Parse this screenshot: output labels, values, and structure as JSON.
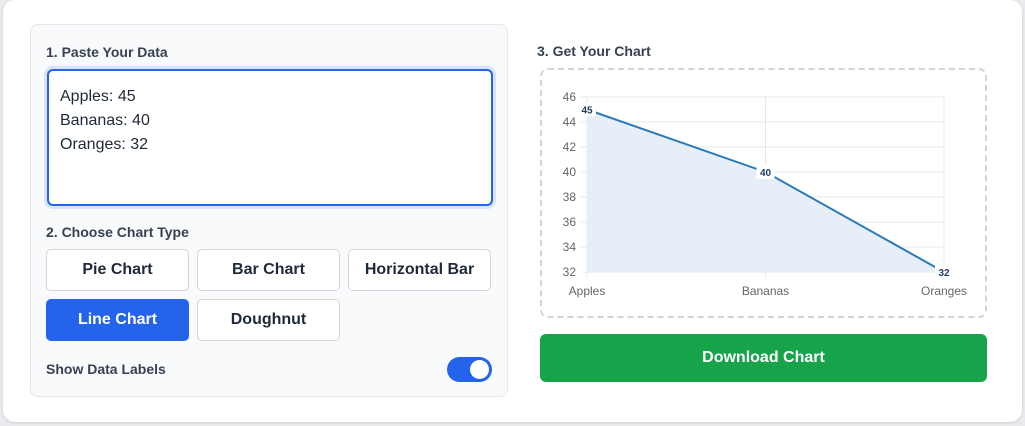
{
  "left": {
    "step1_label": "1. Paste Your Data",
    "data_text": "Apples: 45\nBananas: 40\nOranges: 32",
    "step2_label": "2. Choose Chart Type",
    "chart_types": [
      "Pie Chart",
      "Bar Chart",
      "Horizontal Bar",
      "Line Chart",
      "Doughnut"
    ],
    "selected_type": "Line Chart",
    "show_labels_label": "Show Data Labels",
    "show_labels_on": true
  },
  "right": {
    "step3_label": "3. Get Your Chart",
    "download_label": "Download Chart"
  },
  "colors": {
    "accent": "#2563eb",
    "download": "#16a34a",
    "line": "#2a7ab8",
    "fill": "#e6eef7"
  },
  "chart_data": {
    "type": "line",
    "categories": [
      "Apples",
      "Bananas",
      "Oranges"
    ],
    "values": [
      45,
      40,
      32
    ],
    "ylim": [
      32,
      46
    ],
    "yticks": [
      "32",
      "34",
      "36",
      "38",
      "40",
      "42",
      "44",
      "46"
    ],
    "data_labels": true,
    "filled": true,
    "grid": true,
    "legend": "none"
  }
}
